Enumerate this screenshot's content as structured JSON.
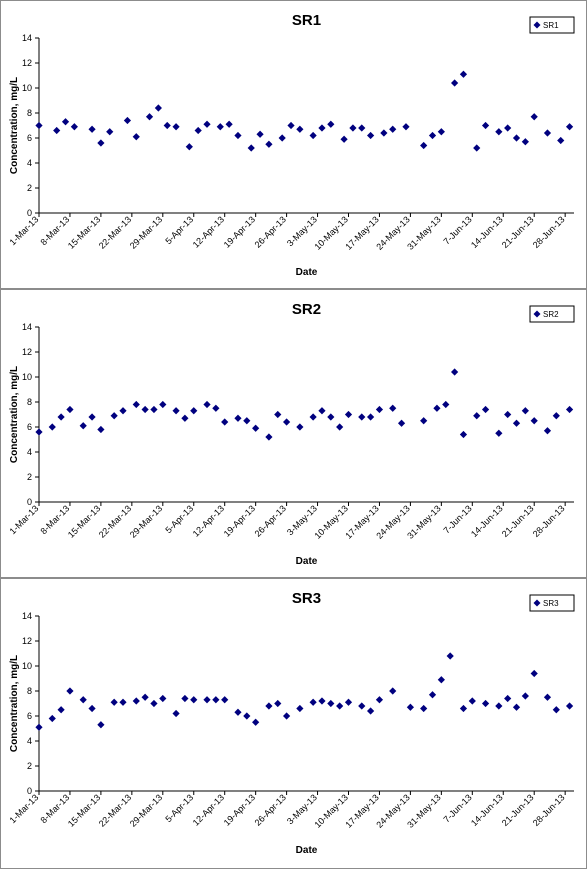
{
  "chart_data": [
    {
      "type": "scatter",
      "title": "SR1",
      "xlabel": "Date",
      "ylabel": "Concentration, mg/L",
      "ylim": [
        0,
        14
      ],
      "yticks": [
        0,
        2,
        4,
        6,
        8,
        10,
        12,
        14
      ],
      "xlim": [
        "2013-03-01",
        "2013-06-30"
      ],
      "xtick_labels": [
        "1-Mar-13",
        "8-Mar-13",
        "15-Mar-13",
        "22-Mar-13",
        "29-Mar-13",
        "5-Apr-13",
        "12-Apr-13",
        "19-Apr-13",
        "26-Apr-13",
        "3-May-13",
        "10-May-13",
        "17-May-13",
        "24-May-13",
        "31-May-13",
        "7-Jun-13",
        "14-Jun-13",
        "21-Jun-13",
        "28-Jun-13"
      ],
      "xtick_dates": [
        "2013-03-01",
        "2013-03-08",
        "2013-03-15",
        "2013-03-22",
        "2013-03-29",
        "2013-04-05",
        "2013-04-12",
        "2013-04-19",
        "2013-04-26",
        "2013-05-03",
        "2013-05-10",
        "2013-05-17",
        "2013-05-24",
        "2013-05-31",
        "2013-06-07",
        "2013-06-14",
        "2013-06-21",
        "2013-06-28"
      ],
      "legend": "top-right",
      "grid": false,
      "marker_color": "#00007f",
      "series": [
        {
          "name": "SR1",
          "x": [
            "2013-03-01",
            "2013-03-05",
            "2013-03-07",
            "2013-03-09",
            "2013-03-13",
            "2013-03-15",
            "2013-03-17",
            "2013-03-21",
            "2013-03-23",
            "2013-03-26",
            "2013-03-28",
            "2013-03-30",
            "2013-04-01",
            "2013-04-04",
            "2013-04-06",
            "2013-04-08",
            "2013-04-11",
            "2013-04-13",
            "2013-04-15",
            "2013-04-18",
            "2013-04-20",
            "2013-04-22",
            "2013-04-25",
            "2013-04-27",
            "2013-04-29",
            "2013-05-02",
            "2013-05-04",
            "2013-05-06",
            "2013-05-09",
            "2013-05-11",
            "2013-05-13",
            "2013-05-15",
            "2013-05-18",
            "2013-05-20",
            "2013-05-23",
            "2013-05-27",
            "2013-05-29",
            "2013-05-31",
            "2013-06-03",
            "2013-06-05",
            "2013-06-08",
            "2013-06-10",
            "2013-06-13",
            "2013-06-15",
            "2013-06-17",
            "2013-06-19",
            "2013-06-21",
            "2013-06-24",
            "2013-06-27",
            "2013-06-29"
          ],
          "y": [
            7.0,
            6.6,
            7.3,
            6.9,
            6.7,
            5.6,
            6.5,
            7.4,
            6.1,
            7.7,
            8.4,
            7.0,
            6.9,
            5.3,
            6.6,
            7.1,
            6.9,
            7.1,
            6.2,
            5.2,
            6.3,
            5.5,
            6.0,
            7.0,
            6.7,
            6.2,
            6.8,
            7.1,
            5.9,
            6.8,
            6.8,
            6.2,
            6.4,
            6.7,
            6.9,
            5.4,
            6.2,
            6.5,
            10.4,
            11.1,
            5.2,
            7.0,
            6.5,
            6.8,
            6.0,
            5.7,
            7.7,
            6.4,
            5.8,
            6.9
          ]
        }
      ]
    },
    {
      "type": "scatter",
      "title": "SR2",
      "xlabel": "Date",
      "ylabel": "Concentration, mg/L",
      "ylim": [
        0,
        14
      ],
      "yticks": [
        0,
        2,
        4,
        6,
        8,
        10,
        12,
        14
      ],
      "xlim": [
        "2013-03-01",
        "2013-06-30"
      ],
      "xtick_labels": [
        "1-Mar-13",
        "8-Mar-13",
        "15-Mar-13",
        "22-Mar-13",
        "29-Mar-13",
        "5-Apr-13",
        "12-Apr-13",
        "19-Apr-13",
        "26-Apr-13",
        "3-May-13",
        "10-May-13",
        "17-May-13",
        "24-May-13",
        "31-May-13",
        "7-Jun-13",
        "14-Jun-13",
        "21-Jun-13",
        "28-Jun-13"
      ],
      "xtick_dates": [
        "2013-03-01",
        "2013-03-08",
        "2013-03-15",
        "2013-03-22",
        "2013-03-29",
        "2013-04-05",
        "2013-04-12",
        "2013-04-19",
        "2013-04-26",
        "2013-05-03",
        "2013-05-10",
        "2013-05-17",
        "2013-05-24",
        "2013-05-31",
        "2013-06-07",
        "2013-06-14",
        "2013-06-21",
        "2013-06-28"
      ],
      "legend": "top-right",
      "grid": false,
      "marker_color": "#00007f",
      "series": [
        {
          "name": "SR2",
          "x": [
            "2013-03-01",
            "2013-03-04",
            "2013-03-06",
            "2013-03-08",
            "2013-03-11",
            "2013-03-13",
            "2013-03-15",
            "2013-03-18",
            "2013-03-20",
            "2013-03-23",
            "2013-03-25",
            "2013-03-27",
            "2013-03-29",
            "2013-04-01",
            "2013-04-03",
            "2013-04-05",
            "2013-04-08",
            "2013-04-10",
            "2013-04-12",
            "2013-04-15",
            "2013-04-17",
            "2013-04-19",
            "2013-04-22",
            "2013-04-24",
            "2013-04-26",
            "2013-04-29",
            "2013-05-02",
            "2013-05-04",
            "2013-05-06",
            "2013-05-08",
            "2013-05-10",
            "2013-05-13",
            "2013-05-15",
            "2013-05-17",
            "2013-05-20",
            "2013-05-22",
            "2013-05-27",
            "2013-05-30",
            "2013-06-01",
            "2013-06-03",
            "2013-06-05",
            "2013-06-08",
            "2013-06-10",
            "2013-06-13",
            "2013-06-15",
            "2013-06-17",
            "2013-06-19",
            "2013-06-21",
            "2013-06-24",
            "2013-06-26",
            "2013-06-29"
          ],
          "y": [
            5.6,
            6.0,
            6.8,
            7.4,
            6.1,
            6.8,
            5.8,
            6.9,
            7.3,
            7.8,
            7.4,
            7.4,
            7.8,
            7.3,
            6.7,
            7.3,
            7.8,
            7.5,
            6.4,
            6.7,
            6.5,
            5.9,
            5.2,
            7.0,
            6.4,
            6.0,
            6.8,
            7.3,
            6.8,
            6.0,
            7.0,
            6.8,
            6.8,
            7.4,
            7.5,
            6.3,
            6.5,
            7.5,
            7.8,
            10.4,
            5.4,
            6.9,
            7.4,
            5.5,
            7.0,
            6.3,
            7.3,
            6.5,
            5.7,
            6.9,
            7.4
          ]
        }
      ]
    },
    {
      "type": "scatter",
      "title": "SR3",
      "xlabel": "Date",
      "ylabel": "Concentration, mg/L",
      "ylim": [
        0,
        14
      ],
      "yticks": [
        0,
        2,
        4,
        6,
        8,
        10,
        12,
        14
      ],
      "xlim": [
        "2013-03-01",
        "2013-06-30"
      ],
      "xtick_labels": [
        "1-Mar-13",
        "8-Mar-13",
        "15-Mar-13",
        "22-Mar-13",
        "29-Mar-13",
        "5-Apr-13",
        "12-Apr-13",
        "19-Apr-13",
        "26-Apr-13",
        "3-May-13",
        "10-May-13",
        "17-May-13",
        "24-May-13",
        "31-May-13",
        "7-Jun-13",
        "14-Jun-13",
        "21-Jun-13",
        "28-Jun-13"
      ],
      "xtick_dates": [
        "2013-03-01",
        "2013-03-08",
        "2013-03-15",
        "2013-03-22",
        "2013-03-29",
        "2013-04-05",
        "2013-04-12",
        "2013-04-19",
        "2013-04-26",
        "2013-05-03",
        "2013-05-10",
        "2013-05-17",
        "2013-05-24",
        "2013-05-31",
        "2013-06-07",
        "2013-06-14",
        "2013-06-21",
        "2013-06-28"
      ],
      "legend": "top-right",
      "grid": false,
      "marker_color": "#00007f",
      "series": [
        {
          "name": "SR3",
          "x": [
            "2013-03-01",
            "2013-03-04",
            "2013-03-06",
            "2013-03-08",
            "2013-03-11",
            "2013-03-13",
            "2013-03-15",
            "2013-03-18",
            "2013-03-20",
            "2013-03-23",
            "2013-03-25",
            "2013-03-27",
            "2013-03-29",
            "2013-04-01",
            "2013-04-03",
            "2013-04-05",
            "2013-04-08",
            "2013-04-10",
            "2013-04-12",
            "2013-04-15",
            "2013-04-17",
            "2013-04-19",
            "2013-04-22",
            "2013-04-24",
            "2013-04-26",
            "2013-04-29",
            "2013-05-02",
            "2013-05-04",
            "2013-05-06",
            "2013-05-08",
            "2013-05-10",
            "2013-05-13",
            "2013-05-15",
            "2013-05-17",
            "2013-05-20",
            "2013-05-24",
            "2013-05-27",
            "2013-05-29",
            "2013-05-31",
            "2013-06-02",
            "2013-06-05",
            "2013-06-07",
            "2013-06-10",
            "2013-06-13",
            "2013-06-15",
            "2013-06-17",
            "2013-06-19",
            "2013-06-21",
            "2013-06-24",
            "2013-06-26",
            "2013-06-29"
          ],
          "y": [
            5.1,
            5.8,
            6.5,
            8.0,
            7.3,
            6.6,
            5.3,
            7.1,
            7.1,
            7.2,
            7.5,
            7.0,
            7.4,
            6.2,
            7.4,
            7.3,
            7.3,
            7.3,
            7.3,
            6.3,
            6.0,
            5.5,
            6.8,
            7.0,
            6.0,
            6.6,
            7.1,
            7.2,
            7.0,
            6.8,
            7.1,
            6.8,
            6.4,
            7.3,
            8.0,
            6.7,
            6.6,
            7.7,
            8.9,
            10.8,
            6.6,
            7.2,
            7.0,
            6.8,
            7.4,
            6.7,
            7.6,
            9.4,
            7.5,
            6.5,
            6.8
          ]
        }
      ]
    }
  ]
}
